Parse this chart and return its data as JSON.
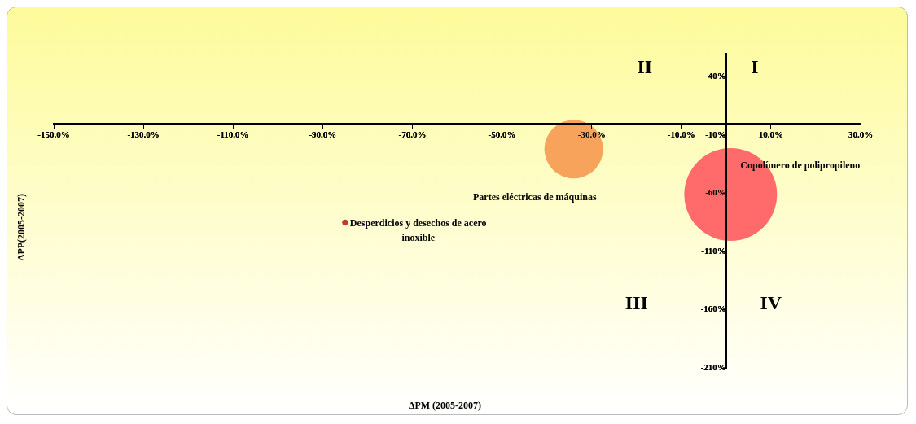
{
  "chart_data": {
    "type": "bubble",
    "xlabel": "ΔPM (2005-2007)",
    "ylabel": "ΔPP(2005-2007)",
    "annotations": [
      "II",
      "I",
      "III",
      "IV"
    ],
    "xlim": [
      -150,
      30
    ],
    "xticks": [
      {
        "value": -150,
        "label": "-150.0%"
      },
      {
        "value": -130,
        "label": "-130.0%"
      },
      {
        "value": -110,
        "label": "-110.0%"
      },
      {
        "value": -90,
        "label": "-90.0%"
      },
      {
        "value": -70,
        "label": "-70.0%"
      },
      {
        "value": -50,
        "label": "-50.0%"
      },
      {
        "value": -30,
        "label": "-30.0%"
      },
      {
        "value": -10,
        "label": "-10.0%"
      },
      {
        "value": 10,
        "label": "10.0%"
      },
      {
        "value": 30,
        "label": "30.0%"
      }
    ],
    "ylim": [
      -210,
      60
    ],
    "yticks": [
      {
        "value": -210,
        "label": "-210%"
      },
      {
        "value": -160,
        "label": "-160%"
      },
      {
        "value": -110,
        "label": "-110%"
      },
      {
        "value": -60,
        "label": "-60%"
      },
      {
        "value": -10,
        "label": "-10%"
      },
      {
        "value": 40,
        "label": "40%"
      }
    ],
    "series": [
      {
        "name": "Partes eléctricas de máquinas",
        "color": "#f7a35c",
        "x": [
          -34
        ],
        "values": [
          -22
        ],
        "sizes": [
          0.4
        ]
      },
      {
        "name": "Copolímero de polipropileno",
        "color": "#ff6b6b",
        "x": [
          1
        ],
        "values": [
          -61
        ],
        "sizes": [
          1
        ]
      },
      {
        "name": "Desperdicios y desechos de acero inoxible",
        "color": "#c0392b",
        "x": [
          -85
        ],
        "values": [
          -85
        ],
        "sizes": [
          0.004
        ]
      }
    ],
    "grid": false,
    "legend": false
  }
}
